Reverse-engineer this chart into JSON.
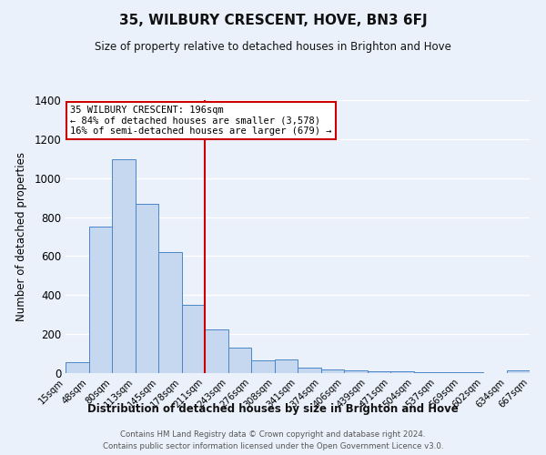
{
  "title": "35, WILBURY CRESCENT, HOVE, BN3 6FJ",
  "subtitle": "Size of property relative to detached houses in Brighton and Hove",
  "xlabel": "Distribution of detached houses by size in Brighton and Hove",
  "ylabel": "Number of detached properties",
  "footnote1": "Contains HM Land Registry data © Crown copyright and database right 2024.",
  "footnote2": "Contains public sector information licensed under the Open Government Licence v3.0.",
  "bar_labels": [
    "15sqm",
    "48sqm",
    "80sqm",
    "113sqm",
    "145sqm",
    "178sqm",
    "211sqm",
    "243sqm",
    "276sqm",
    "308sqm",
    "341sqm",
    "374sqm",
    "406sqm",
    "439sqm",
    "471sqm",
    "504sqm",
    "537sqm",
    "569sqm",
    "602sqm",
    "634sqm",
    "667sqm"
  ],
  "bar_values": [
    55,
    750,
    1095,
    870,
    620,
    348,
    225,
    130,
    65,
    68,
    28,
    20,
    15,
    10,
    8,
    5,
    4,
    3,
    2,
    15
  ],
  "bar_color": "#c5d8f0",
  "bar_edge_color": "#4a86c8",
  "background_color": "#eaf1fb",
  "grid_color": "#ffffff",
  "vline_x": 6,
  "vline_color": "#cc0000",
  "annotation_title": "35 WILBURY CRESCENT: 196sqm",
  "annotation_line1": "← 84% of detached houses are smaller (3,578)",
  "annotation_line2": "16% of semi-detached houses are larger (679) →",
  "annotation_box_color": "#ffffff",
  "annotation_box_edge": "#cc0000",
  "ylim": [
    0,
    1400
  ],
  "yticks": [
    0,
    200,
    400,
    600,
    800,
    1000,
    1200,
    1400
  ]
}
